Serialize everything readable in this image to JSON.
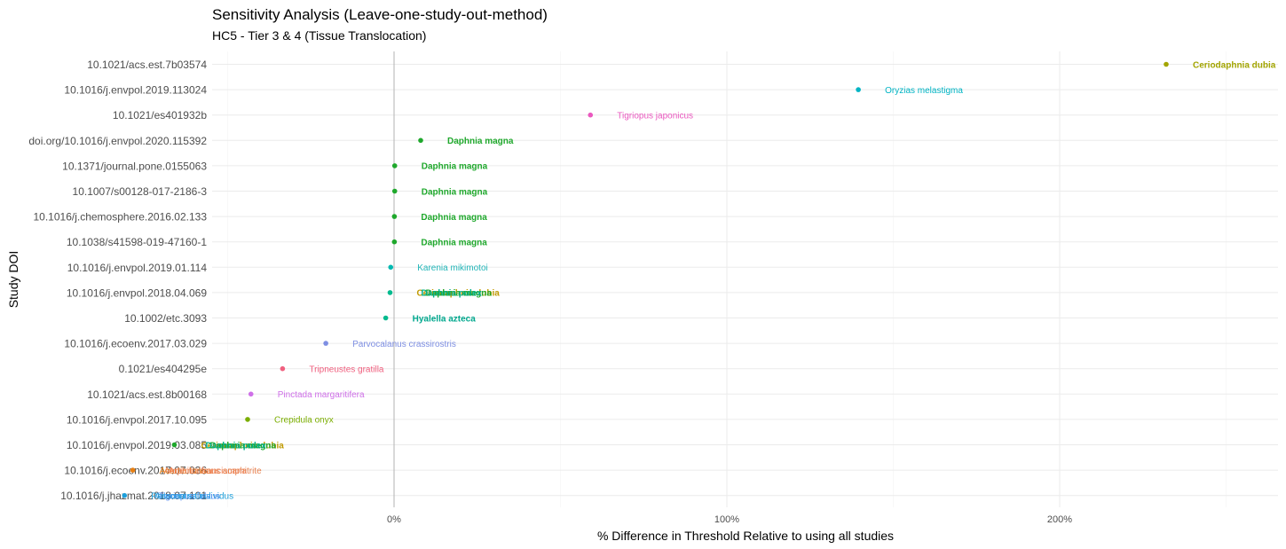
{
  "chart_data": {
    "type": "scatter",
    "title": "Sensitivity Analysis (Leave-one-study-out-method)",
    "subtitle": "HC5 - Tier 3 & 4 (Tissue Translocation)",
    "xlabel": "% Difference in Threshold Relative to using all studies",
    "ylabel": "Study DOI",
    "xlim": [
      -50,
      265
    ],
    "x_ticks": [
      0,
      100,
      200
    ],
    "x_tick_labels": [
      "0%",
      "100%",
      "200%"
    ],
    "grid": true,
    "legend": "none",
    "categories": [
      "10.1021/acs.est.7b03574",
      "10.1016/j.envpol.2019.113024",
      "10.1021/es401932b",
      "doi.org/10.1016/j.envpol.2020.115392",
      "10.1371/journal.pone.0155063",
      "10.1007/s00128-017-2186-3",
      "10.1016/j.chemosphere.2016.02.133",
      "10.1038/s41598-019-47160-1",
      "10.1016/j.envpol.2019.01.114",
      "10.1016/j.envpol.2018.04.069",
      "10.1002/etc.3093",
      "10.1016/j.ecoenv.2017.03.029",
      "0.1021/es404295e",
      "10.1021/acs.est.8b00168",
      "10.1016/j.envpol.2017.10.095",
      "10.1016/j.envpol.2019.03.085",
      "10.1016/j.ecoenv.2017.07.036",
      "10.1016/j.jhazmat.2018.07.101"
    ],
    "points": [
      {
        "study": "10.1021/acs.est.7b03574",
        "x": 232,
        "color": "#A3A500",
        "labels": [
          {
            "text": "Ceriodaphnia dubia",
            "color": "#A3A500",
            "bold": true
          }
        ]
      },
      {
        "study": "10.1016/j.envpol.2019.113024",
        "x": 139.5,
        "color": "#00B4C4",
        "labels": [
          {
            "text": "Oryzias melastigma",
            "color": "#00B4C4",
            "bold": false
          }
        ]
      },
      {
        "study": "10.1021/es401932b",
        "x": 59,
        "color": "#EA58BF",
        "labels": [
          {
            "text": "Tigriopus japonicus",
            "color": "#EA58BF",
            "bold": false
          }
        ]
      },
      {
        "study": "doi.org/10.1016/j.envpol.2020.115392",
        "x": 8,
        "color": "#1FA82C",
        "labels": [
          {
            "text": "Daphnia magna",
            "color": "#1FA82C",
            "bold": true
          }
        ]
      },
      {
        "study": "10.1371/journal.pone.0155063",
        "x": 0.2,
        "color": "#1FA82C",
        "labels": [
          {
            "text": "Daphnia magna",
            "color": "#1FA82C",
            "bold": true
          }
        ]
      },
      {
        "study": "10.1007/s00128-017-2186-3",
        "x": 0.2,
        "color": "#1FA82C",
        "labels": [
          {
            "text": "Daphnia magna",
            "color": "#1FA82C",
            "bold": true
          }
        ]
      },
      {
        "study": "10.1016/j.chemosphere.2016.02.133",
        "x": 0.1,
        "color": "#1FA82C",
        "labels": [
          {
            "text": "Daphnia magna",
            "color": "#1FA82C",
            "bold": true
          }
        ]
      },
      {
        "study": "10.1038/s41598-019-47160-1",
        "x": 0.1,
        "color": "#1FA82C",
        "labels": [
          {
            "text": "Daphnia magna",
            "color": "#1FA82C",
            "bold": true
          }
        ]
      },
      {
        "study": "10.1016/j.envpol.2019.01.114",
        "x": -1,
        "color": "#00B9B1",
        "labels": [
          {
            "text": "Karenia mikimotoi",
            "color": "#22B6B8",
            "bold": false
          }
        ]
      },
      {
        "study": "10.1016/j.envpol.2018.04.069",
        "x": -1.2,
        "color": "#00BA8E",
        "labels": [
          {
            "text": "Ceriodaphnia dubia",
            "color": "#C09A00",
            "bold": true,
            "dx": 0
          },
          {
            "text": "Daphnia magna",
            "color": "#1FA82C",
            "bold": true,
            "dx": 10
          },
          {
            "text": "Daphnia pulex",
            "color": "#00B08A",
            "bold": true,
            "dx": 5
          }
        ]
      },
      {
        "study": "10.1002/etc.3093",
        "x": -2.5,
        "color": "#00BA8E",
        "labels": [
          {
            "text": "Hyalella azteca",
            "color": "#00A88E",
            "bold": true
          }
        ]
      },
      {
        "study": "10.1016/j.ecoenv.2017.03.029",
        "x": -20.5,
        "color": "#7E8FE3",
        "labels": [
          {
            "text": "Parvocalanus crassirostris",
            "color": "#7E8FE3",
            "bold": false
          }
        ]
      },
      {
        "study": "0.1021/es404295e",
        "x": -33.5,
        "color": "#F0607F",
        "labels": [
          {
            "text": "Tripneustes gratilla",
            "color": "#F0607F",
            "bold": false
          }
        ]
      },
      {
        "study": "10.1021/acs.est.8b00168",
        "x": -43,
        "color": "#CF70E8",
        "labels": [
          {
            "text": "Pinctada margaritifera",
            "color": "#CF70E8",
            "bold": false
          }
        ]
      },
      {
        "study": "10.1016/j.envpol.2017.10.095",
        "x": -44,
        "color": "#7BAE00",
        "labels": [
          {
            "text": "Crepidula onyx",
            "color": "#7BAE00",
            "bold": false
          }
        ]
      },
      {
        "study": "10.1016/j.envpol.2019.03.085",
        "x": -66,
        "color": "#1FA82C",
        "labels": [
          {
            "text": "Ceriodaphnia dubia",
            "color": "#C09A00",
            "bold": true,
            "dx": 0
          },
          {
            "text": "Daphnia magna",
            "color": "#1FA82C",
            "bold": true,
            "dx": 10
          },
          {
            "text": "Daphnia pulex",
            "color": "#00B08A",
            "bold": true,
            "dx": 5
          }
        ]
      },
      {
        "study": "10.1016/j.ecoenv.2017.07.036",
        "x": -78.5,
        "color": "#E77F12",
        "labels": [
          {
            "text": "Acartia tonsa",
            "color": "#E77F12",
            "bold": false,
            "dx": 0
          },
          {
            "text": "Artemia franciscana",
            "color": "#F07A4A",
            "bold": false,
            "dx": 10
          },
          {
            "text": "Amphibalanus amphitrite",
            "color": "#E8804E",
            "bold": false,
            "dx": 5
          }
        ]
      },
      {
        "study": "10.1016/j.jhazmat.2018.07.101",
        "x": -81,
        "color": "#1C9FDB",
        "labels": [
          {
            "text": "Paracentrotus lividus",
            "color": "#1C9FDB",
            "bold": false,
            "dx": 0
          },
          {
            "text": "Tigriopus fulvus",
            "color": "#5A8FF0",
            "bold": false,
            "dx": 8
          },
          {
            "text": "Artemia salina",
            "color": "#2FA0E8",
            "bold": false,
            "dx": 4
          }
        ]
      }
    ]
  }
}
